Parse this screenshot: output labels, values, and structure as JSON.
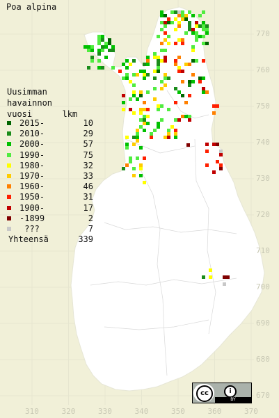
{
  "title": "Poa alpina",
  "legend": {
    "heading": "Uusimman\nhavainnon\nvuosi      lkm",
    "rows": [
      {
        "label": "2015-",
        "count": "10",
        "color": "#006400"
      },
      {
        "label": "2010-",
        "count": "29",
        "color": "#1a8c1a"
      },
      {
        "label": "2000-",
        "count": "57",
        "color": "#00c000"
      },
      {
        "label": "1990-",
        "count": "75",
        "color": "#50ec40"
      },
      {
        "label": "1980-",
        "count": "32",
        "color": "#ffff00"
      },
      {
        "label": "1970-",
        "count": "33",
        "color": "#ffcc00"
      },
      {
        "label": "1960-",
        "count": "46",
        "color": "#ff8000"
      },
      {
        "label": "1950-",
        "count": "31",
        "color": "#ff2000"
      },
      {
        "label": "1900-",
        "count": "17",
        "color": "#c00000"
      },
      {
        "label": "-1899",
        "count": "2",
        "color": "#800000"
      },
      {
        "label": " ???",
        "count": "7",
        "color": "#c8c8c8"
      }
    ],
    "total_label": "Yhteensä",
    "total_count": "339"
  },
  "axes": {
    "y_ticks": [
      "770",
      "760",
      "750",
      "740",
      "730",
      "720",
      "710",
      "700",
      "690",
      "680",
      "670"
    ],
    "x_ticks": [
      "310",
      "320",
      "330",
      "340",
      "350",
      "360",
      "370"
    ]
  },
  "license": {
    "cc": "cc",
    "by": "i",
    "by_text": "BY"
  },
  "colors": {
    "background": "#f1f0d8",
    "land": "#ffffff",
    "grid": "#dcdcc8"
  }
}
